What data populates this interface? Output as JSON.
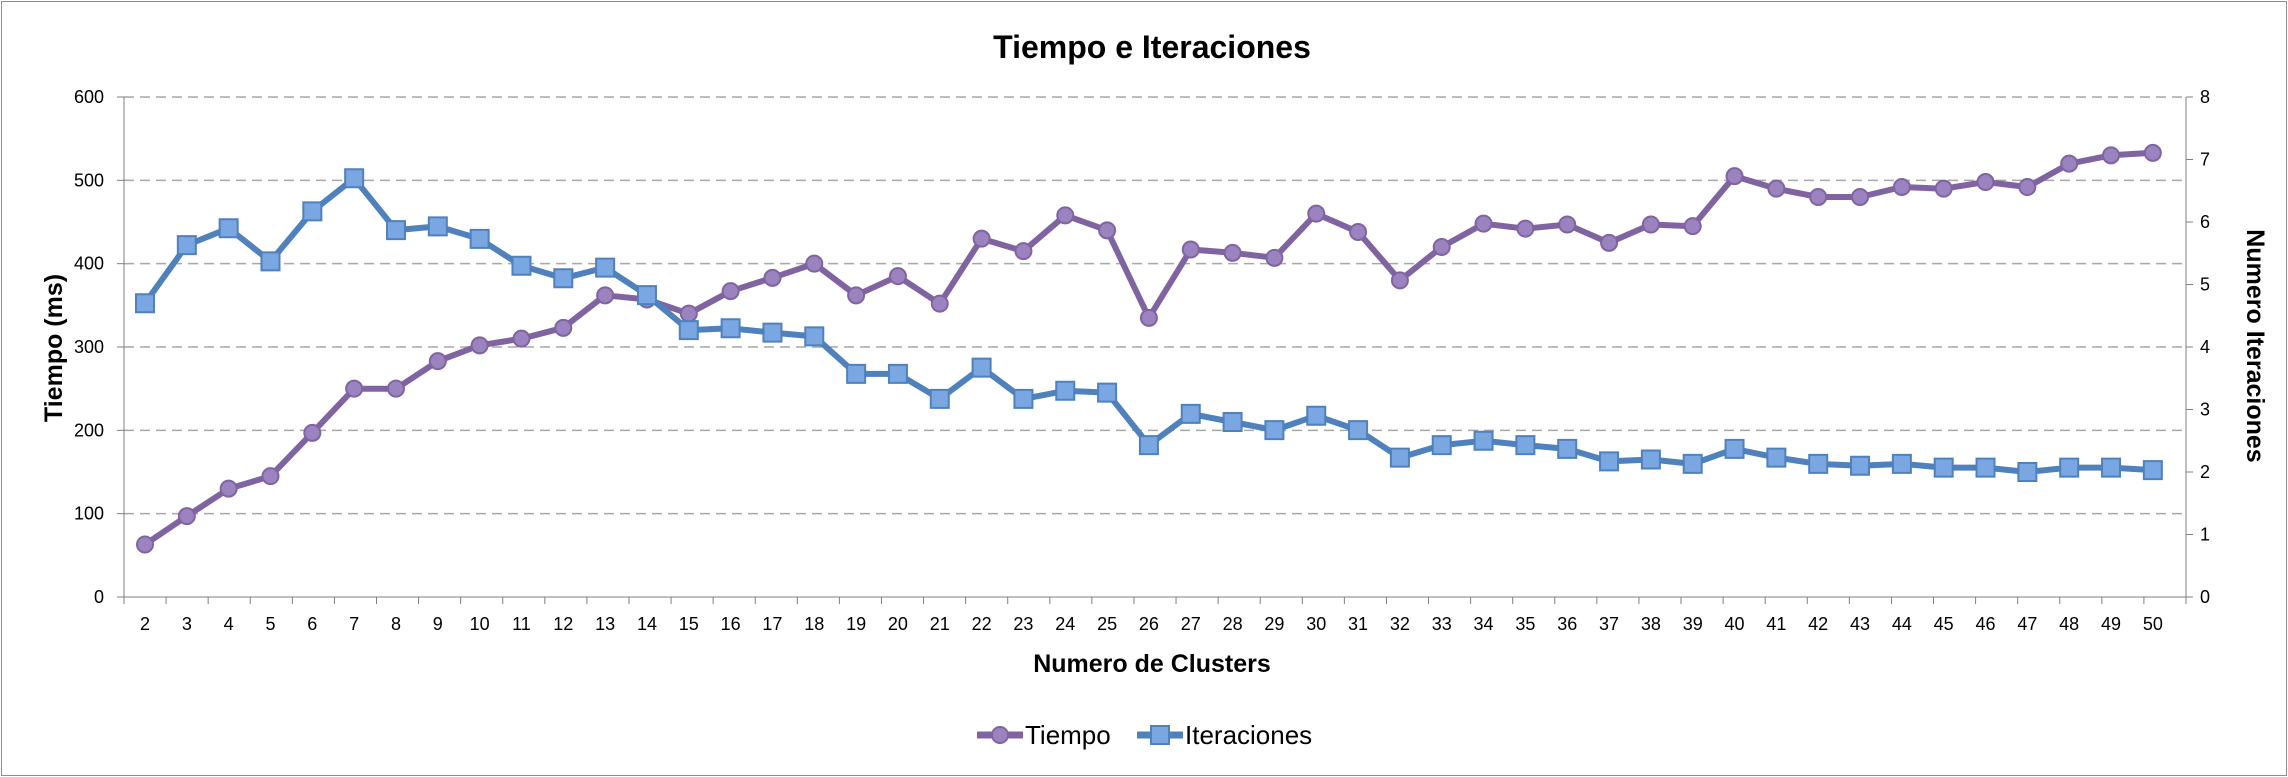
{
  "colors": {
    "tiempo": "#8064a2",
    "tiempo_marker": "#9b83c0",
    "iteraciones": "#4f81bd",
    "iteraciones_marker": "#7aa6e2",
    "grid": "#a6a6a6"
  },
  "chart_data": {
    "type": "line",
    "title": "Tiempo e Iteraciones",
    "xlabel": "Numero de Clusters",
    "ylabel": "Tiempo (ms)",
    "y2label": "Numero Iteraciones",
    "categories": [
      "2",
      "3",
      "4",
      "5",
      "6",
      "7",
      "8",
      "9",
      "10",
      "11",
      "12",
      "13",
      "14",
      "15",
      "16",
      "17",
      "18",
      "19",
      "20",
      "21",
      "22",
      "23",
      "24",
      "25",
      "26",
      "27",
      "28",
      "29",
      "30",
      "31",
      "32",
      "33",
      "34",
      "35",
      "36",
      "37",
      "38",
      "39",
      "40",
      "41",
      "42",
      "43",
      "44",
      "45",
      "46",
      "47",
      "48",
      "49",
      "50"
    ],
    "ylim": [
      0,
      600
    ],
    "y2lim": [
      0,
      8
    ],
    "yticks": [
      "0",
      "100",
      "200",
      "300",
      "400",
      "500",
      "600"
    ],
    "y2ticks": [
      "0",
      "1",
      "2",
      "3",
      "4",
      "5",
      "6",
      "7",
      "8"
    ],
    "grid": true,
    "legend_position": "bottom",
    "series": [
      {
        "name": "Tiempo",
        "axis": "left",
        "marker": "circle",
        "values": [
          63,
          97,
          130,
          145,
          197,
          250,
          250,
          283,
          302,
          310,
          323,
          362,
          357,
          340,
          367,
          383,
          400,
          362,
          385,
          352,
          430,
          415,
          458,
          440,
          335,
          417,
          413,
          407,
          460,
          438,
          380,
          420,
          448,
          442,
          447,
          425,
          447,
          445,
          505,
          490,
          480,
          480,
          492,
          490,
          498,
          492,
          520,
          530,
          533
        ]
      },
      {
        "name": "Iteraciones",
        "axis": "right",
        "marker": "square",
        "values": [
          4.7,
          5.63,
          5.9,
          5.37,
          6.17,
          6.7,
          5.87,
          5.93,
          5.73,
          5.3,
          5.1,
          5.27,
          4.83,
          4.27,
          4.3,
          4.23,
          4.17,
          3.57,
          3.57,
          3.17,
          3.67,
          3.17,
          3.3,
          3.27,
          2.43,
          2.93,
          2.8,
          2.67,
          2.9,
          2.67,
          2.23,
          2.43,
          2.5,
          2.43,
          2.37,
          2.17,
          2.2,
          2.13,
          2.37,
          2.23,
          2.13,
          2.1,
          2.13,
          2.07,
          2.07,
          2.0,
          2.07,
          2.07,
          2.03
        ]
      }
    ]
  }
}
